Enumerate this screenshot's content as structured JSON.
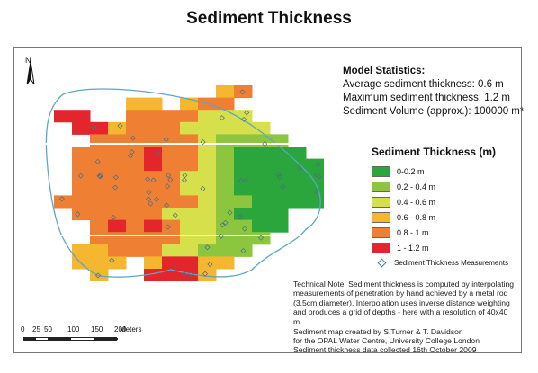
{
  "title": "Sediment Thickness",
  "north_label": "N",
  "stats": {
    "heading": "Model Statistics:",
    "avg": "Average sediment thickness: 0.6 m",
    "max": "Maximum sediment thickness: 1.2 m",
    "volume": "Sediment Volume (approx.): 100000 m³"
  },
  "legend": {
    "title": "Sediment Thickness (m)",
    "classes": [
      {
        "label": "0-0.2 m",
        "color": "#2aa63c"
      },
      {
        "label": "0.2 - 0.4 m",
        "color": "#8cc63f"
      },
      {
        "label": "0.4 - 0.6 m",
        "color": "#d6e04a"
      },
      {
        "label": "0.6 - 0.8 m",
        "color": "#f5b730"
      },
      {
        "label": "0.8 - 1 m",
        "color": "#ef8033"
      },
      {
        "label": "1 - 1.2 m",
        "color": "#e2262b"
      }
    ],
    "measurements_label": "Sediment Thickness Measurements"
  },
  "note": "Technical Note: Sediment thickness is computed by interpolating measurements of penetration by hand achieved by a metal rod (3.5cm diameter). Interpolation uses inverse distance weighting and produces a  grid of depths - here with a resolution of 40x40 m.",
  "credit": [
    "Sediment map created by S.Turner & T. Davidson",
    "for the OPAL Water Centre, University College London",
    "Sediment thickness data collected 16th October 2009"
  ],
  "scale": {
    "labels": [
      "0",
      "25",
      "50",
      "100",
      "150",
      "200"
    ],
    "values_m": [
      0,
      25,
      50,
      100,
      150,
      200
    ],
    "unit": "Meters"
  },
  "grid": [
    "..........AB....",
    ".....AA.ABB.....",
    ".FF..BBBBCCC....",
    "..FFABBBCCCCC...",
    "...BBBBBBCDDDD..",
    "..BBBBFBBCDEEEE.",
    "..BBBBFBBCDEEEEE",
    "..BBBBBBCCDEEEEE",
    "..BBBBBBCCDEEEEE",
    ".BBBBBBBBCDDEEEE",
    "..BBBBBCCCDEEE..",
    "...BFBFBCCDDEE..",
    "...BBBBBCCDDD...",
    "..AABBBCCDDD....",
    "..AAA.AFFAA.....",
    "...A..FFFA......"
  ]
}
